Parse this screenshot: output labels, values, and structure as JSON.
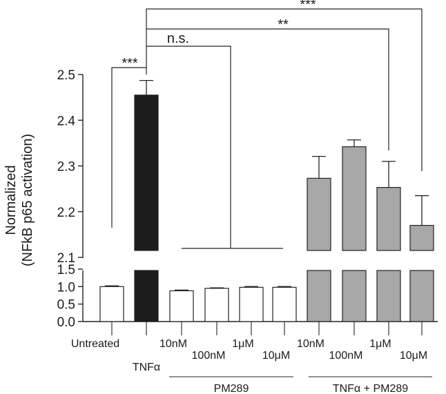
{
  "chart_data": {
    "type": "bar",
    "title": "",
    "ylabel": "Normalized\n(NFkB p65 activation)",
    "xlabel": "",
    "y_axis": {
      "broken": true,
      "lower_range": [
        0,
        1.5
      ],
      "upper_range": [
        2.1,
        2.5
      ],
      "lower_ticks": [
        "0.0",
        "0.5",
        "1.0",
        "1.5"
      ],
      "upper_ticks": [
        "2.1",
        "2.2",
        "2.3",
        "2.4",
        "2.5"
      ]
    },
    "grid": false,
    "bars": [
      {
        "label": "Untreated",
        "value": 1.0,
        "error": 0.02,
        "color": "#ffffff"
      },
      {
        "label": "TNFα",
        "value": 2.455,
        "error": 0.032,
        "color": "#1c1c1c"
      },
      {
        "label": "10nM",
        "value": 0.88,
        "error": 0.02,
        "color": "#ffffff"
      },
      {
        "label": "100nM",
        "value": 0.95,
        "error": 0.015,
        "color": "#ffffff"
      },
      {
        "label": "1μM",
        "value": 0.98,
        "error": 0.02,
        "color": "#ffffff"
      },
      {
        "label": "10μM",
        "value": 0.98,
        "error": 0.02,
        "color": "#ffffff"
      },
      {
        "label": "10nM",
        "value": 2.273,
        "error": 0.048,
        "color": "#a8a8a8"
      },
      {
        "label": "100nM",
        "value": 2.342,
        "error": 0.015,
        "color": "#a8a8a8"
      },
      {
        "label": "1μM",
        "value": 2.253,
        "error": 0.057,
        "color": "#a8a8a8"
      },
      {
        "label": "10μM",
        "value": 2.17,
        "error": 0.065,
        "color": "#a8a8a8"
      }
    ],
    "groups": [
      {
        "label": "PM289",
        "bars": [
          2,
          3,
          4,
          5
        ]
      },
      {
        "label": "TNFα + PM289",
        "bars": [
          6,
          7,
          8,
          9
        ]
      }
    ],
    "annotations": [
      {
        "text": "***",
        "from": 0,
        "to": 1
      },
      {
        "text": "n.s.",
        "from": 1,
        "to": [
          2,
          3,
          4,
          5
        ]
      },
      {
        "text": "**",
        "from": 1,
        "to": 8
      },
      {
        "text": "***",
        "from": 1,
        "to": 9
      }
    ]
  }
}
